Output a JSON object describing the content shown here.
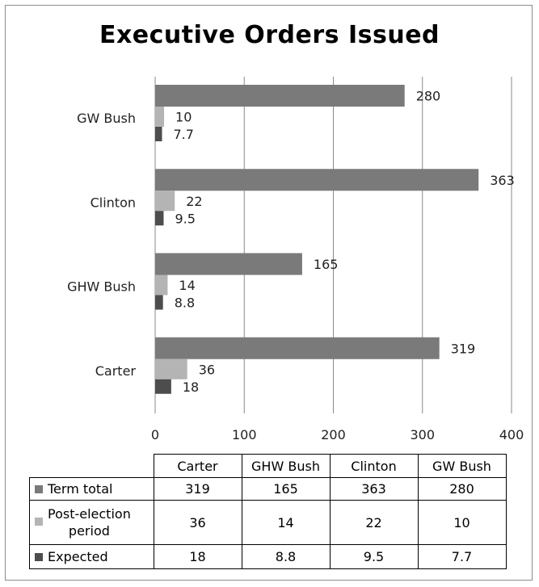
{
  "chart_data": {
    "type": "bar",
    "orientation": "horizontal",
    "title": "Executive Orders  Issued",
    "categories": [
      "Carter",
      "GHW Bush",
      "Clinton",
      "GW Bush"
    ],
    "series": [
      {
        "name": "Term total",
        "values": [
          319,
          165,
          363,
          280
        ],
        "color": "#7a7a7a"
      },
      {
        "name": "Post-election period",
        "values": [
          36,
          14,
          22,
          10
        ],
        "color": "#b4b4b4"
      },
      {
        "name": "Expected",
        "values": [
          18,
          8.8,
          9.5,
          7.7
        ],
        "color": "#4d4d4d"
      }
    ],
    "xlim": [
      0,
      400
    ],
    "x_ticks": [
      0,
      100,
      200,
      300,
      400
    ],
    "grid": true,
    "data_table": true
  },
  "table": {
    "headers": [
      "Carter",
      "GHW Bush",
      "Clinton",
      "GW Bush"
    ],
    "rows": [
      {
        "label": "Term total",
        "values": [
          "319",
          "165",
          "363",
          "280"
        ]
      },
      {
        "label_line1": "Post-election",
        "label_line2": "period",
        "values": [
          "36",
          "14",
          "22",
          "10"
        ]
      },
      {
        "label": "Expected",
        "values": [
          "18",
          "8.8",
          "9.5",
          "7.7"
        ]
      }
    ]
  }
}
